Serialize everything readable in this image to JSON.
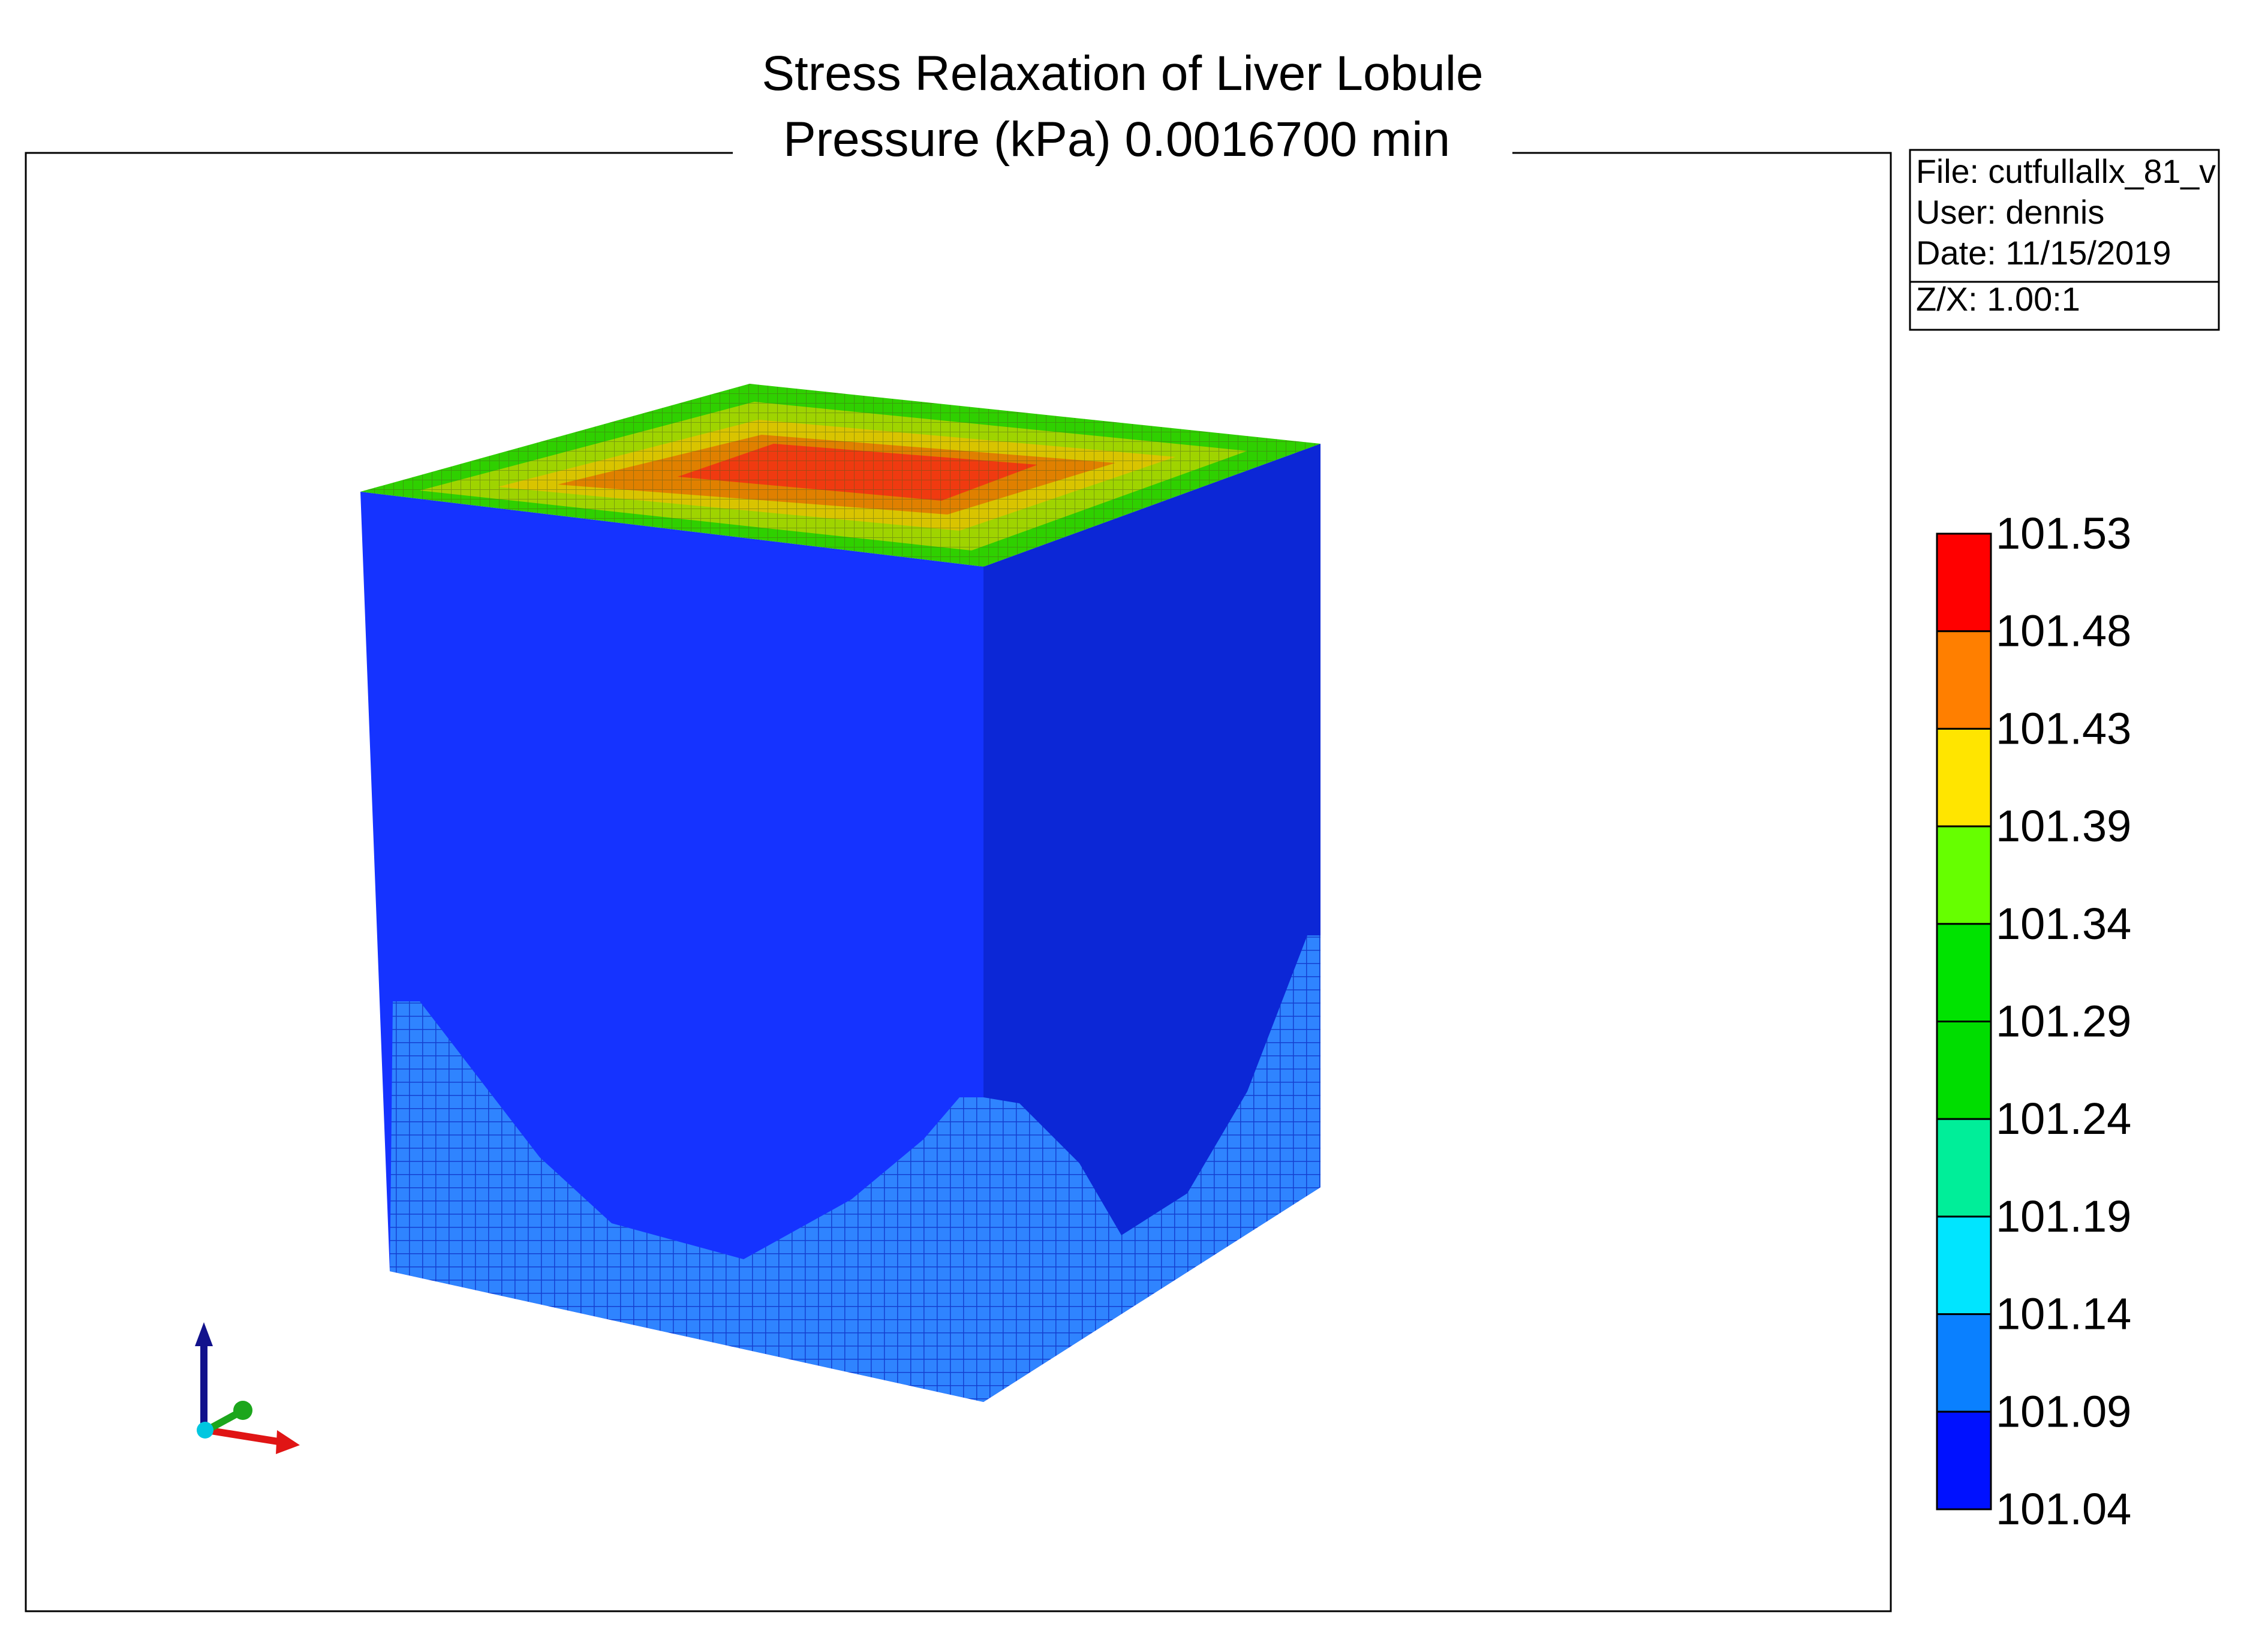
{
  "title": {
    "line1": "Stress Relaxation of Liver Lobule",
    "line2": "Pressure (kPa) 0.0016700 min"
  },
  "info_box": {
    "file": "File: cutfullallx_81_v",
    "user": "User:  dennis",
    "date": "Date: 11/15/2019",
    "scale": "Z/X: 1.00:1"
  },
  "legend": {
    "labels": [
      "101.53",
      "101.48",
      "101.43",
      "101.39",
      "101.34",
      "101.29",
      "101.24",
      "101.19",
      "101.14",
      "101.09",
      "101.04"
    ],
    "colors": [
      "#ff0000",
      "#ff7f00",
      "#ffe500",
      "#66ff00",
      "#00e300",
      "#00dd00",
      "#00ee99",
      "#00e5ff",
      "#0a80ff",
      "#0011ff"
    ]
  },
  "model": {
    "front_face_color": "#1533ff",
    "right_face_color": "#0c27d6",
    "mesh_color": "#2f84ff",
    "top_field_colors": [
      "#2fd000",
      "#9fd400",
      "#d9c400",
      "#e08000",
      "#f03a10"
    ]
  },
  "axes_triad": {
    "colors": {
      "z": "#12128c",
      "x": "#e01515",
      "y": "#1ca61c",
      "origin": "#00c7e0"
    }
  }
}
